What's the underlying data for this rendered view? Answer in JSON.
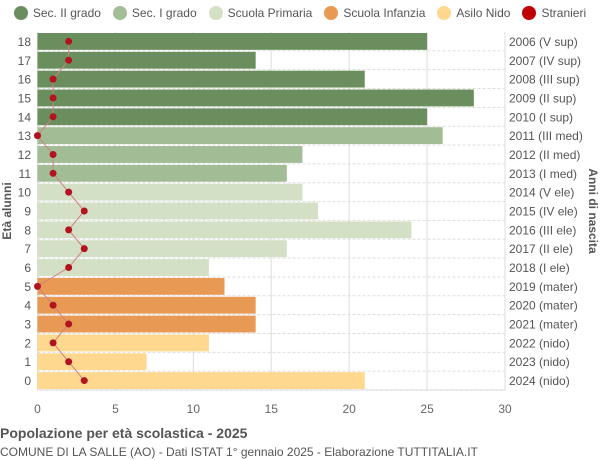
{
  "chart_data": {
    "type": "bar",
    "title": "Popolazione per età scolastica - 2025",
    "subtitle": "COMUNE DI LA SALLE (AO) - Dati ISTAT 1° gennaio 2025 - Elaborazione TUTTITALIA.IT",
    "ylabel": "Età alunni",
    "ylabel_right": "Anni di nascita",
    "xlim": [
      0,
      30
    ],
    "xticks": [
      "0",
      "5",
      "10",
      "15",
      "20",
      "25",
      "30"
    ],
    "grid": true,
    "legend_position": "top",
    "legend": [
      {
        "name": "Sec. II grado",
        "color": "#6b8e5e"
      },
      {
        "name": "Sec. I grado",
        "color": "#a2bd96"
      },
      {
        "name": "Scuola Primaria",
        "color": "#d4e0c6"
      },
      {
        "name": "Scuola Infanzia",
        "color": "#e89a55"
      },
      {
        "name": "Asilo Nido",
        "color": "#fdd88e"
      },
      {
        "name": "Stranieri",
        "color": "#c00000"
      }
    ],
    "ages": [
      "18",
      "17",
      "16",
      "15",
      "14",
      "13",
      "12",
      "11",
      "10",
      "9",
      "8",
      "7",
      "6",
      "5",
      "4",
      "3",
      "2",
      "1",
      "0"
    ],
    "birth_years": [
      "2006 (V sup)",
      "2007 (IV sup)",
      "2008 (III sup)",
      "2009 (II sup)",
      "2010 (I sup)",
      "2011 (III med)",
      "2012 (II med)",
      "2013 (I med)",
      "2014 (V ele)",
      "2015 (IV ele)",
      "2016 (III ele)",
      "2017 (II ele)",
      "2018 (I ele)",
      "2019 (mater)",
      "2020 (mater)",
      "2021 (mater)",
      "2022 (nido)",
      "2023 (nido)",
      "2024 (nido)"
    ],
    "groups": [
      0,
      0,
      0,
      0,
      0,
      1,
      1,
      1,
      2,
      2,
      2,
      2,
      2,
      3,
      3,
      3,
      4,
      4,
      4
    ],
    "values": [
      25,
      14,
      21,
      28,
      25,
      26,
      17,
      16,
      17,
      18,
      24,
      16,
      11,
      12,
      14,
      14,
      11,
      7,
      21
    ],
    "stranieri": [
      2,
      2,
      1,
      1,
      1,
      0,
      1,
      1,
      2,
      3,
      2,
      3,
      2,
      0,
      1,
      2,
      1,
      2,
      3
    ]
  }
}
